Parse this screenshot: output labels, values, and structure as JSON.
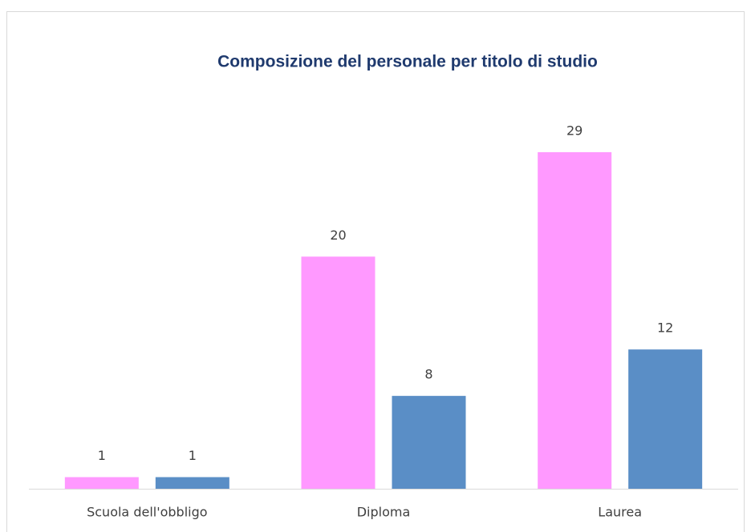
{
  "chart_data": {
    "type": "bar",
    "title": "Composizione del personale per titolo di studio",
    "categories": [
      "Scuola dell'obbligo",
      "Diploma",
      "Laurea"
    ],
    "series": [
      {
        "color": "#ff99ff",
        "values": [
          1,
          20,
          29
        ]
      },
      {
        "color": "#5a8ec6",
        "values": [
          1,
          8,
          12
        ]
      }
    ],
    "ylim": [
      0,
      35
    ]
  }
}
